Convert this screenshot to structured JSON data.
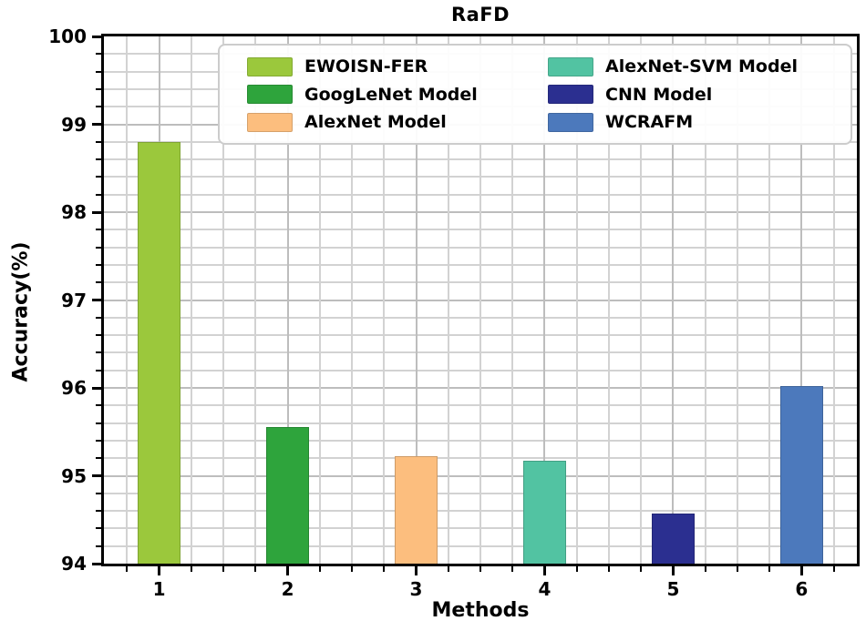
{
  "chart_data": {
    "type": "bar",
    "title": "RaFD",
    "xlabel": "Methods",
    "ylabel": "Accuracy(%)",
    "categories": [
      "1",
      "2",
      "3",
      "4",
      "5",
      "6"
    ],
    "bars": [
      {
        "method": "1",
        "label": "EWOISN-FER",
        "value": 98.8,
        "color": "#9bc83c"
      },
      {
        "method": "2",
        "label": "GoogLeNet Model",
        "value": 95.55,
        "color": "#2ea43c"
      },
      {
        "method": "3",
        "label": "AlexNet Model",
        "value": 95.22,
        "color": "#fcbe7e"
      },
      {
        "method": "4",
        "label": "AlexNet-SVM Model",
        "value": 95.17,
        "color": "#52c3a2"
      },
      {
        "method": "5",
        "label": "CNN Model",
        "value": 94.57,
        "color": "#2b2f90"
      },
      {
        "method": "6",
        "label": "WCRAFM",
        "value": 96.02,
        "color": "#4c79bc"
      }
    ],
    "ylim": [
      94,
      100
    ],
    "xlim": [
      0.57,
      6.43
    ],
    "y_major_step": 1,
    "y_minor_step": 0.2,
    "x_minor_step": 0.25,
    "y_tick_labels": [
      "94",
      "95",
      "96",
      "97",
      "98",
      "99",
      "100"
    ],
    "bar_width_units": 0.33,
    "grid": true,
    "legend_position": "upper center",
    "legend_columns": 2,
    "legend_fill": "column-major",
    "colors": {
      "axis": "#000000",
      "grid_major": "#bdbdbd",
      "grid_minor": "#d2d2d2",
      "background": "#ffffff"
    }
  }
}
